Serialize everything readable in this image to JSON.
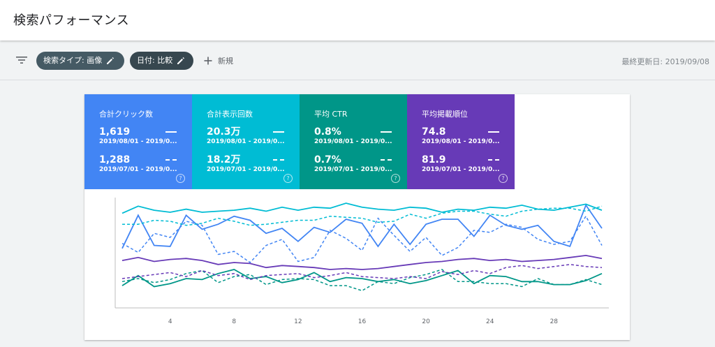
{
  "header": {
    "title": "検索パフォーマンス"
  },
  "toolbar": {
    "chips": [
      {
        "label": "検索タイプ: 画像"
      },
      {
        "label": "日付: 比較"
      }
    ],
    "new_label": "新規",
    "last_updated": "最終更新日: 2019/09/08"
  },
  "metrics": [
    {
      "title": "合計クリック数",
      "current_value": "1,619",
      "current_range": "2019/08/01 - 2019/0...",
      "previous_value": "1,288",
      "previous_range": "2019/07/01 - 2019/0...",
      "color": "#4285f4"
    },
    {
      "title": "合計表示回数",
      "current_value": "20.3万",
      "current_range": "2019/08/01 - 2019/0...",
      "previous_value": "18.2万",
      "previous_range": "2019/07/01 - 2019/0...",
      "color": "#00bcd4"
    },
    {
      "title": "平均 CTR",
      "current_value": "0.8%",
      "current_range": "2019/08/01 - 2019/0...",
      "previous_value": "0.7%",
      "previous_range": "2019/07/01 - 2019/0...",
      "color": "#009688"
    },
    {
      "title": "平均掲載順位",
      "current_value": "74.8",
      "current_range": "2019/08/01 - 2019/0...",
      "previous_value": "81.9",
      "previous_range": "2019/07/01 - 2019/0...",
      "color": "#673ab7"
    }
  ],
  "chart_data": {
    "type": "line",
    "x": [
      1,
      2,
      3,
      4,
      5,
      6,
      7,
      8,
      9,
      10,
      11,
      12,
      13,
      14,
      15,
      16,
      17,
      18,
      19,
      20,
      21,
      22,
      23,
      24,
      25,
      26,
      27,
      28,
      29,
      30,
      31
    ],
    "x_ticks": [
      4,
      8,
      12,
      16,
      20,
      24,
      28
    ],
    "ylim": [
      0,
      100
    ],
    "grid": false,
    "legend": "none",
    "series": [
      {
        "metric": "clicks",
        "period": "current",
        "style": "solid",
        "color": "#4285f4",
        "values": [
          55,
          88,
          58,
          57,
          88,
          74,
          79,
          87,
          83,
          70,
          75,
          62,
          76,
          71,
          84,
          80,
          57,
          79,
          59,
          79,
          84,
          84,
          67,
          88,
          78,
          74,
          78,
          62,
          57,
          98,
          75
        ]
      },
      {
        "metric": "clicks",
        "period": "previous",
        "style": "dashed",
        "color": "#4285f4",
        "values": [
          60,
          51,
          70,
          66,
          82,
          78,
          49,
          52,
          41,
          58,
          64,
          42,
          46,
          73,
          65,
          53,
          85,
          68,
          52,
          66,
          48,
          56,
          73,
          71,
          79,
          76,
          64,
          59,
          62,
          87,
          58
        ]
      },
      {
        "metric": "impressions",
        "period": "current",
        "style": "solid",
        "color": "#00bcd4",
        "values": [
          90,
          97,
          93,
          91,
          94,
          91,
          92,
          93,
          95,
          92,
          96,
          93,
          96,
          95,
          100,
          96,
          94,
          93,
          96,
          95,
          91,
          94,
          93,
          96,
          95,
          98,
          94,
          93,
          96,
          99,
          93
        ]
      },
      {
        "metric": "impressions",
        "period": "previous",
        "style": "dashed",
        "color": "#00bcd4",
        "values": [
          79,
          79,
          83,
          82,
          78,
          80,
          85,
          82,
          78,
          79,
          81,
          83,
          83,
          87,
          86,
          85,
          81,
          82,
          89,
          85,
          90,
          92,
          92,
          89,
          87,
          92,
          94,
          95,
          95,
          92,
          97
        ]
      },
      {
        "metric": "ctr",
        "period": "current",
        "style": "solid",
        "color": "#009688",
        "values": [
          18,
          28,
          17,
          20,
          25,
          24,
          30,
          34,
          25,
          27,
          21,
          24,
          31,
          22,
          26,
          25,
          22,
          24,
          20,
          23,
          28,
          33,
          20,
          28,
          27,
          22,
          22,
          19,
          19,
          23,
          30
        ]
      },
      {
        "metric": "ctr",
        "period": "previous",
        "style": "dashed",
        "color": "#009688",
        "values": [
          22,
          25,
          21,
          24,
          30,
          33,
          21,
          27,
          29,
          19,
          24,
          25,
          24,
          18,
          18,
          13,
          22,
          20,
          26,
          29,
          34,
          22,
          22,
          20,
          20,
          17,
          25,
          19,
          19,
          24,
          19
        ]
      },
      {
        "metric": "position",
        "period": "current",
        "style": "solid",
        "color": "#673ab7",
        "values": [
          43,
          46,
          42,
          44,
          45,
          43,
          39,
          41,
          40,
          36,
          38,
          37,
          36,
          34,
          35,
          34,
          35,
          37,
          39,
          41,
          42,
          44,
          45,
          43,
          44,
          42,
          43,
          44,
          46,
          48,
          45
        ]
      },
      {
        "metric": "position",
        "period": "previous",
        "style": "dashed",
        "color": "#673ab7",
        "values": [
          25,
          27,
          29,
          31,
          27,
          33,
          28,
          30,
          24,
          28,
          29,
          30,
          26,
          28,
          31,
          27,
          26,
          25,
          27,
          25,
          32,
          29,
          33,
          30,
          36,
          38,
          35,
          37,
          39,
          37,
          36
        ]
      }
    ]
  }
}
